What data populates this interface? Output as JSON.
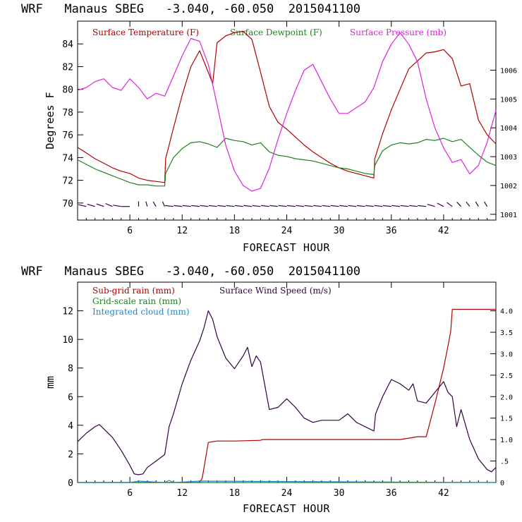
{
  "chart_data": [
    {
      "type": "line",
      "title": "WRF   Manaus SBEG   -3.040, -60.050  2015041100",
      "xlabel": "FORECAST HOUR",
      "ylabel": "Degrees F",
      "xlim": [
        0,
        48
      ],
      "ylim": [
        68.5,
        86
      ],
      "y2lim": [
        1000.8,
        1007.7
      ],
      "xticks": [
        6,
        12,
        18,
        24,
        30,
        36,
        42
      ],
      "yticks": [
        70,
        72,
        74,
        76,
        78,
        80,
        82,
        84
      ],
      "y2ticks": [
        1001,
        1002,
        1003,
        1004,
        1005,
        1006
      ],
      "grid": false,
      "legend": "top",
      "series": [
        {
          "name": "Surface Temperature (F)",
          "color": "#b00000",
          "axis": "left",
          "x": [
            0,
            1,
            2,
            3,
            4,
            5,
            6,
            7,
            8,
            9,
            10,
            10.1,
            11,
            12,
            13,
            14,
            15,
            15.5,
            16,
            17,
            18,
            19,
            20,
            21,
            22,
            23,
            24,
            25,
            26,
            27,
            28,
            29,
            30,
            31,
            32,
            33,
            34,
            34.1,
            35,
            36,
            37,
            38,
            39,
            40,
            41,
            42,
            43,
            44,
            45,
            46,
            47,
            48
          ],
          "values": [
            74.9,
            74.4,
            73.9,
            73.5,
            73.1,
            72.8,
            72.6,
            72.2,
            72.0,
            71.9,
            71.8,
            73.9,
            76.6,
            79.5,
            82.0,
            83.4,
            81.5,
            80.5,
            84.1,
            84.7,
            85.0,
            85.1,
            84.4,
            81.5,
            78.5,
            77.1,
            76.5,
            75.8,
            75.1,
            74.5,
            74.0,
            73.5,
            73.1,
            72.8,
            72.6,
            72.4,
            72.2,
            73.9,
            76.1,
            78.2,
            80.0,
            81.8,
            82.5,
            83.2,
            83.3,
            83.5,
            82.7,
            80.3,
            80.5,
            77.3,
            76.0,
            75.2
          ]
        },
        {
          "name": "Surface Dewpoint (F)",
          "color": "#208020",
          "axis": "left",
          "x": [
            0,
            1,
            2,
            3,
            4,
            5,
            6,
            7,
            8,
            9,
            10,
            10.1,
            11,
            12,
            13,
            14,
            15,
            16,
            17,
            18,
            19,
            20,
            21,
            22,
            23,
            24,
            25,
            26,
            27,
            28,
            29,
            30,
            31,
            32,
            33,
            34,
            34.1,
            35,
            36,
            37,
            38,
            39,
            40,
            41,
            42,
            43,
            44,
            45,
            46,
            47,
            48
          ],
          "values": [
            73.8,
            73.4,
            73.0,
            72.7,
            72.4,
            72.1,
            71.8,
            71.6,
            71.6,
            71.5,
            71.5,
            72.6,
            74.0,
            74.8,
            75.3,
            75.4,
            75.2,
            74.9,
            75.7,
            75.5,
            75.4,
            75.1,
            75.3,
            74.5,
            74.2,
            74.1,
            73.9,
            73.8,
            73.7,
            73.5,
            73.3,
            73.1,
            73.0,
            72.8,
            72.6,
            72.5,
            73.3,
            74.6,
            75.1,
            75.3,
            75.2,
            75.3,
            75.6,
            75.5,
            75.7,
            75.4,
            75.6,
            74.9,
            74.2,
            73.6,
            73.3
          ]
        },
        {
          "name": "Surface Pressure (mb)",
          "color": "#dd22dd",
          "axis": "right",
          "x": [
            0,
            1,
            2,
            3,
            4,
            5,
            6,
            7,
            8,
            9,
            10,
            11,
            12,
            13,
            14,
            15,
            16,
            17,
            18,
            19,
            20,
            21,
            22,
            23,
            24,
            25,
            26,
            27,
            28,
            29,
            30,
            31,
            32,
            33,
            34,
            35,
            36,
            37,
            38,
            39,
            40,
            41,
            42,
            43,
            44,
            45,
            46,
            47,
            48
          ],
          "values": [
            1005.3,
            1005.4,
            1005.6,
            1005.7,
            1005.4,
            1005.3,
            1005.7,
            1005.4,
            1005.0,
            1005.2,
            1005.1,
            1005.8,
            1006.5,
            1007.1,
            1007.0,
            1006.2,
            1004.8,
            1003.4,
            1002.5,
            1002.0,
            1001.8,
            1001.9,
            1002.6,
            1003.6,
            1004.5,
            1005.3,
            1006.0,
            1006.2,
            1005.6,
            1005.0,
            1004.5,
            1004.5,
            1004.7,
            1004.9,
            1005.4,
            1006.3,
            1006.9,
            1007.3,
            1006.9,
            1006.3,
            1005.0,
            1004.0,
            1003.3,
            1002.8,
            1002.9,
            1002.4,
            1002.7,
            1003.5,
            1004.6
          ]
        }
      ],
      "wind_barbs": {
        "y": 69.7,
        "x": [
          1,
          2,
          3,
          4,
          5,
          6,
          7,
          8,
          9,
          10,
          11,
          12,
          13,
          14,
          15,
          16,
          17,
          18,
          19,
          20,
          21,
          22,
          23,
          24,
          25,
          26,
          27,
          28,
          29,
          30,
          31,
          32,
          33,
          34,
          35,
          36,
          37,
          38,
          39,
          40,
          41,
          42,
          43,
          44,
          45,
          46,
          47
        ],
        "dir": [
          70,
          65,
          60,
          55,
          75,
          90,
          0,
          10,
          20,
          15,
          80,
          80,
          80,
          80,
          80,
          80,
          80,
          80,
          80,
          80,
          80,
          80,
          80,
          80,
          80,
          80,
          80,
          80,
          80,
          80,
          80,
          80,
          80,
          80,
          80,
          80,
          80,
          80,
          80,
          80,
          65,
          50,
          40,
          30,
          25,
          20,
          20
        ],
        "color": "#330044"
      }
    },
    {
      "type": "line",
      "title": "WRF   Manaus SBEG   -3.040, -60.050  2015041100",
      "xlabel": "FORECAST HOUR",
      "ylabel": "mm",
      "xlim": [
        0,
        48
      ],
      "ylim": [
        0,
        14
      ],
      "y2lim": [
        0,
        4.667
      ],
      "xticks": [
        6,
        12,
        18,
        24,
        30,
        36,
        42
      ],
      "yticks": [
        0,
        2,
        4,
        6,
        8,
        10,
        12
      ],
      "y2ticks": [
        0,
        0.5,
        1.0,
        1.5,
        2.0,
        2.5,
        3.0,
        3.5,
        4.0
      ],
      "y2ticklabels": [
        "0",
        ".5",
        "1.0",
        "1.5",
        "2.0",
        "2.5",
        "3.0",
        "3.5",
        "4.0"
      ],
      "grid": false,
      "legend": "top",
      "series": [
        {
          "name": "Sub-grid rain (mm)",
          "color": "#b00000",
          "axis": "left",
          "x": [
            0,
            14,
            14.3,
            15,
            16,
            18,
            21,
            21.2,
            30,
            37,
            38,
            39,
            40,
            41,
            42,
            42.8,
            43,
            44,
            45,
            46,
            47,
            48
          ],
          "values": [
            0,
            0,
            0.3,
            2.8,
            2.9,
            2.9,
            2.95,
            3.0,
            3.0,
            3.0,
            3.1,
            3.2,
            3.2,
            5.5,
            8.0,
            10.5,
            12.1,
            12.1,
            12.1,
            12.1,
            12.1,
            12.1
          ]
        },
        {
          "name": "Grid-scale rain (mm)",
          "color": "#208020",
          "axis": "left",
          "x": [
            0,
            48
          ],
          "values": [
            0,
            0
          ]
        },
        {
          "name": "Integrated cloud (mm)",
          "color": "#2288cc",
          "axis": "left",
          "x": [
            0,
            6,
            7,
            10,
            10.5,
            11,
            14,
            48
          ],
          "values": [
            0,
            0,
            0.1,
            0,
            0.15,
            0,
            0.1,
            0
          ]
        },
        {
          "name": "Surface Wind Speed (m/s)",
          "color": "#330044",
          "axis": "right",
          "x": [
            0,
            1,
            2,
            2.5,
            3,
            4,
            5,
            6,
            6.5,
            7,
            7.5,
            8,
            9,
            10,
            10.5,
            11,
            12,
            13,
            14,
            14.5,
            15,
            15.5,
            16,
            17,
            18,
            19,
            19.5,
            20,
            20.5,
            21,
            22,
            23,
            24,
            25,
            26,
            27,
            28,
            29,
            30,
            31,
            32,
            33,
            34,
            34.2,
            35,
            36,
            37,
            38,
            38.5,
            39,
            40,
            41,
            42,
            42.5,
            43,
            43.5,
            44,
            45,
            46,
            47,
            47.5,
            48
          ],
          "values": [
            0.95,
            1.15,
            1.3,
            1.35,
            1.25,
            1.05,
            0.75,
            0.4,
            0.2,
            0.18,
            0.2,
            0.35,
            0.5,
            0.65,
            1.3,
            1.6,
            2.3,
            2.85,
            3.3,
            3.6,
            4.0,
            3.8,
            3.4,
            2.9,
            2.65,
            2.95,
            3.15,
            2.7,
            2.95,
            2.8,
            1.7,
            1.75,
            1.95,
            1.75,
            1.5,
            1.4,
            1.45,
            1.45,
            1.45,
            1.6,
            1.4,
            1.3,
            1.2,
            1.6,
            2.0,
            2.4,
            2.3,
            2.15,
            2.3,
            1.9,
            1.85,
            2.1,
            2.35,
            2.1,
            2.0,
            1.3,
            1.7,
            1.0,
            0.55,
            0.3,
            0.25,
            0.35
          ]
        }
      ]
    }
  ]
}
